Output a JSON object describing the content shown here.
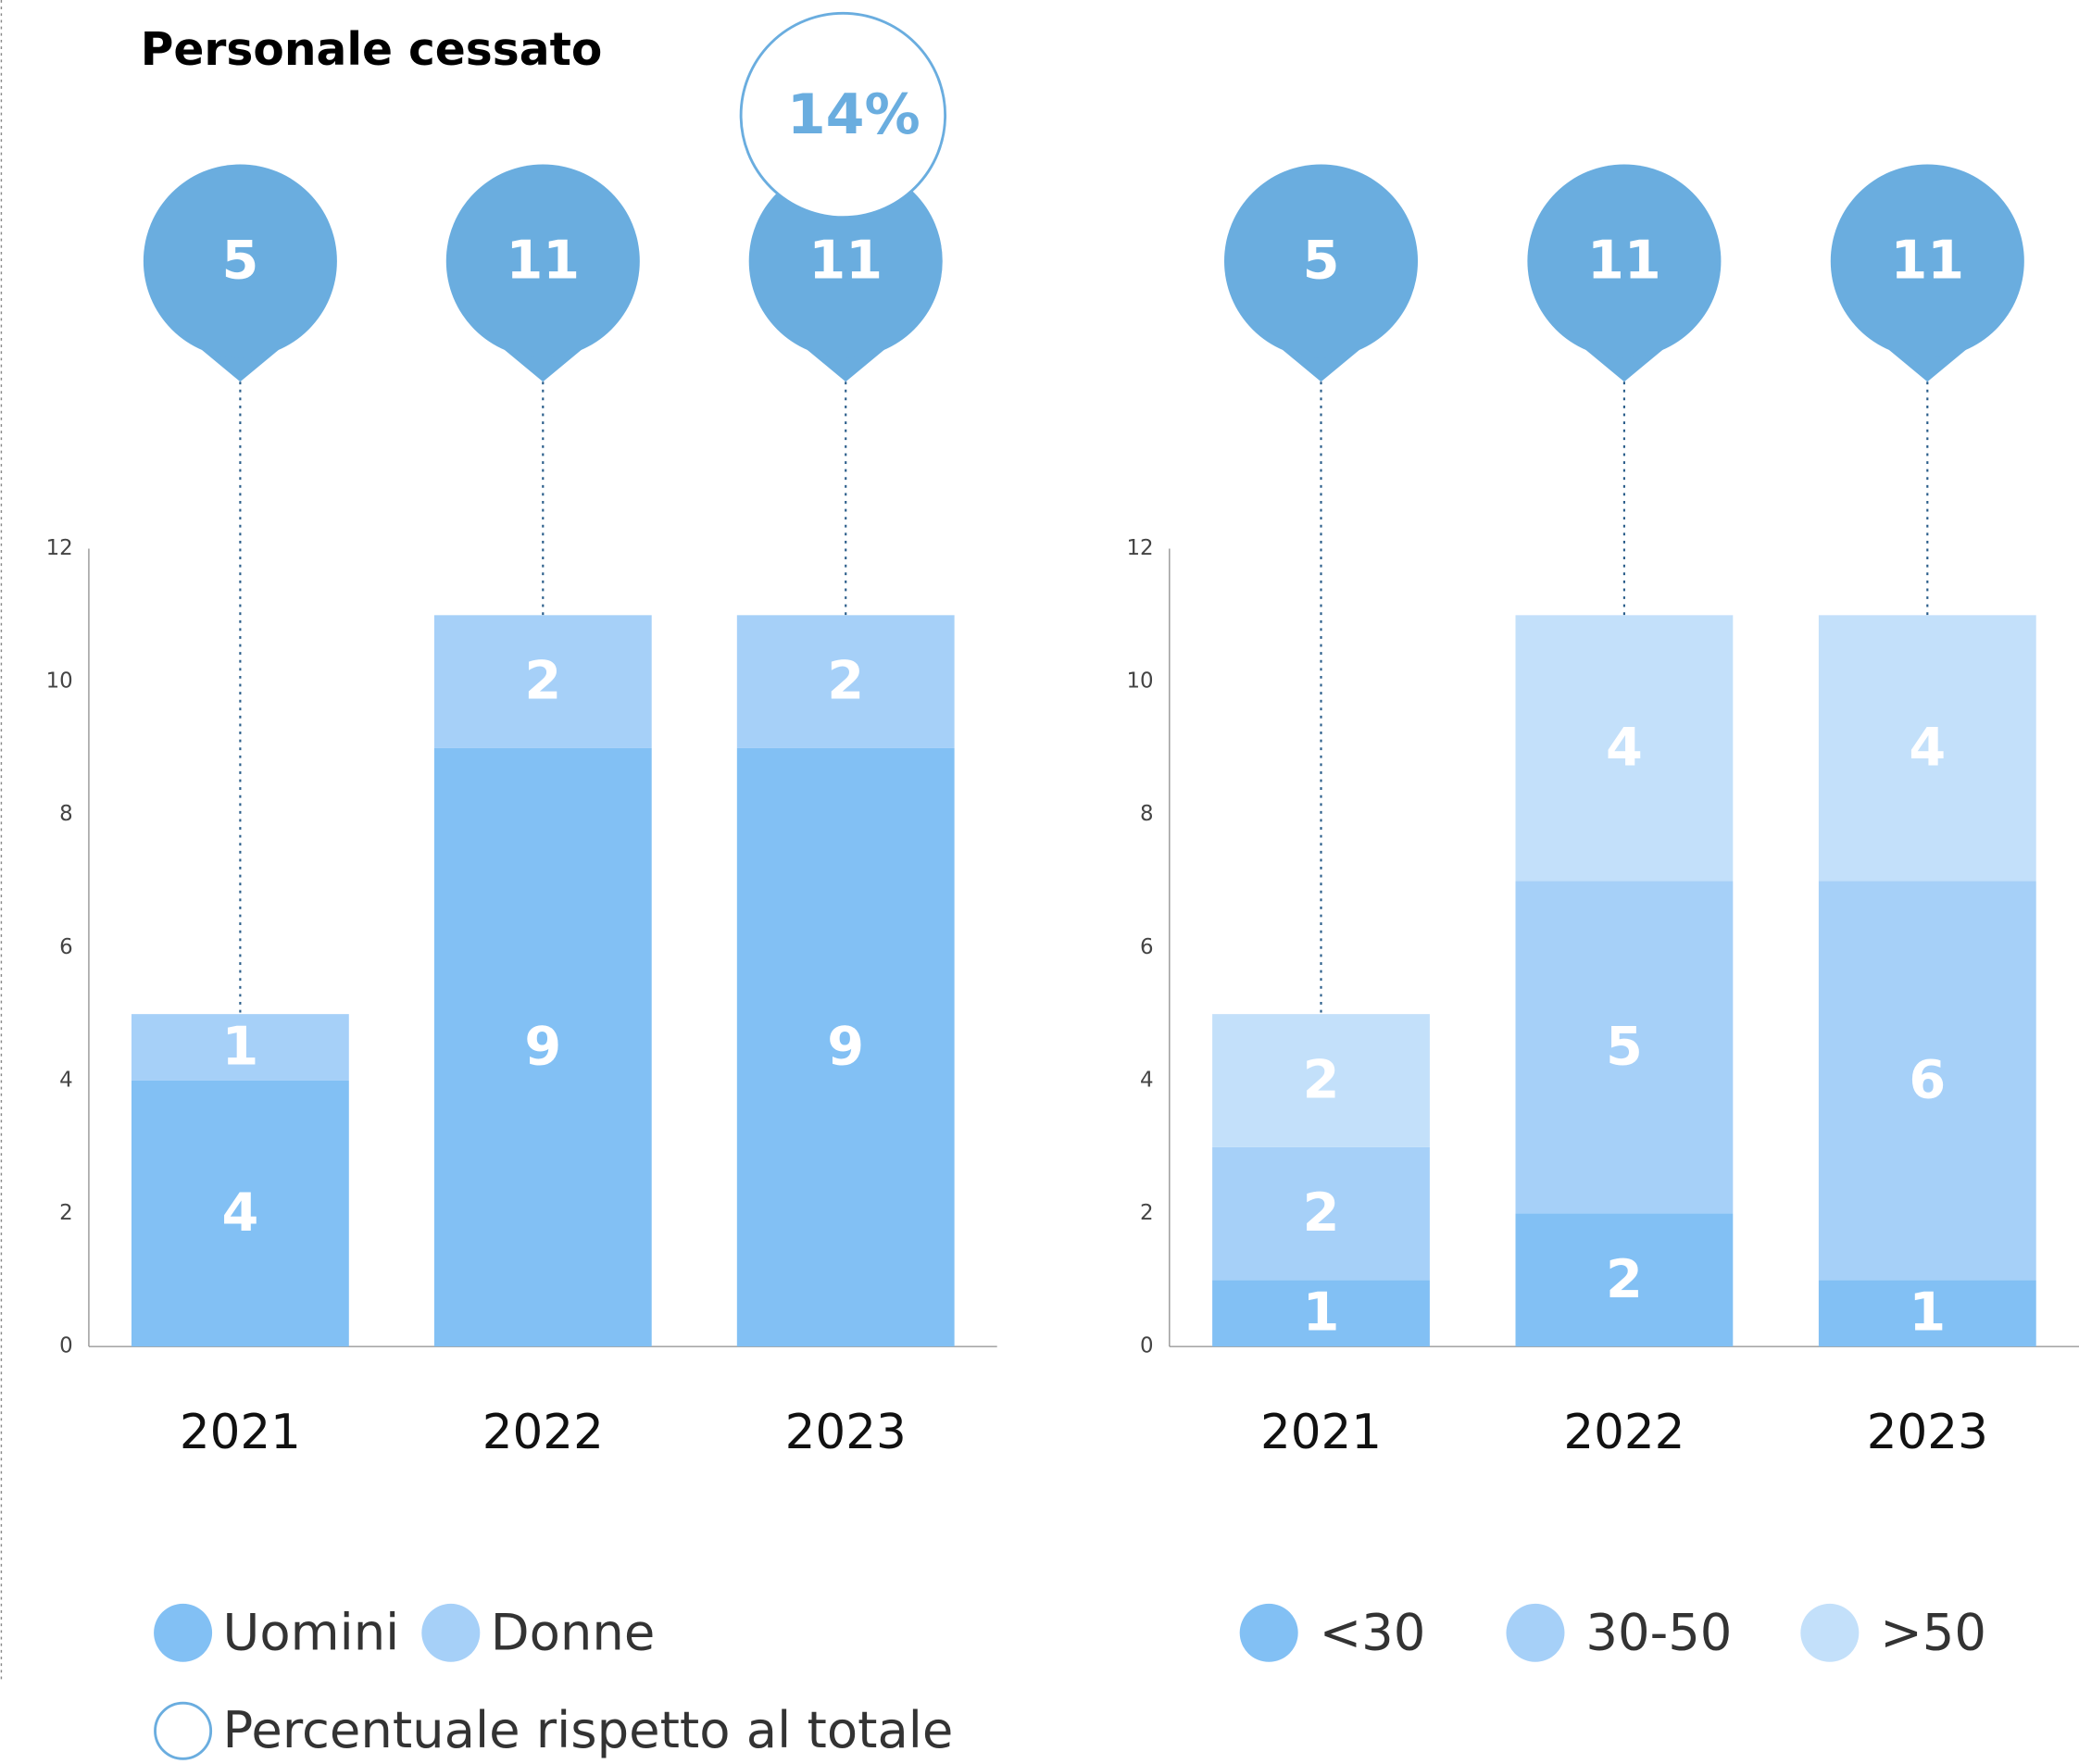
{
  "chart_data": [
    {
      "type": "bar",
      "stacked": true,
      "title": "Personale cessato",
      "categories": [
        "2021",
        "2022",
        "2023"
      ],
      "series": [
        {
          "name": "Uomini",
          "color": "#82c0f4",
          "values": [
            4,
            9,
            9
          ]
        },
        {
          "name": "Donne",
          "color": "#a6d0f8",
          "values": [
            1,
            2,
            2
          ]
        }
      ],
      "totals": [
        5,
        11,
        11
      ],
      "totals_color": "#6aaddf",
      "annotations": [
        {
          "x": "2023",
          "text": "14%"
        }
      ],
      "annotation_legend": "Percentuale rispetto al totale",
      "ylim": [
        0,
        12
      ],
      "yticks": [
        0,
        2,
        4,
        6,
        8,
        10,
        12
      ],
      "grid": false
    },
    {
      "type": "bar",
      "stacked": true,
      "categories": [
        "2021",
        "2022",
        "2023"
      ],
      "series": [
        {
          "name": "<30",
          "color": "#82c0f4",
          "values": [
            1,
            2,
            1
          ]
        },
        {
          "name": "30-50",
          "color": "#a6d0f8",
          "values": [
            2,
            5,
            6
          ]
        },
        {
          "name": ">50",
          "color": "#c3e0fa",
          "values": [
            2,
            4,
            4
          ]
        }
      ],
      "totals": [
        5,
        11,
        11
      ],
      "totals_color": "#6aaddf",
      "ylim": [
        0,
        12
      ],
      "yticks": [
        0,
        2,
        4,
        6,
        8,
        10,
        12
      ],
      "grid": false
    }
  ]
}
